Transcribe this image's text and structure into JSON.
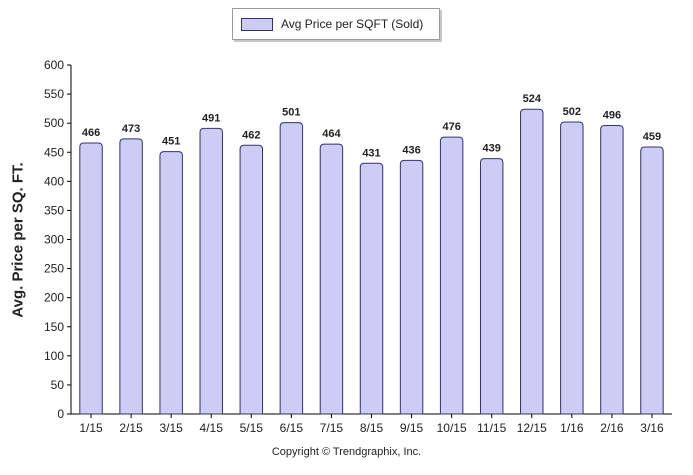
{
  "chart_data": {
    "type": "bar",
    "legend_label": "Avg Price per SQFT (Sold)",
    "legend_position": "top-center",
    "ylabel": "Avg. Price per SQ. FT.",
    "xlabel": "",
    "categories": [
      "1/15",
      "2/15",
      "3/15",
      "4/15",
      "5/15",
      "6/15",
      "7/15",
      "8/15",
      "9/15",
      "10/15",
      "11/15",
      "12/15",
      "1/16",
      "2/16",
      "3/16"
    ],
    "values": [
      466,
      473,
      451,
      491,
      462,
      501,
      464,
      431,
      436,
      476,
      439,
      524,
      502,
      496,
      459
    ],
    "value_labels": [
      "466",
      "473",
      "451",
      "491",
      "462",
      "501",
      "464",
      "431",
      "436",
      "476",
      "439",
      "524",
      "502",
      "496",
      "459"
    ],
    "ylim": [
      0,
      600
    ],
    "yticks": [
      "0",
      "50",
      "100",
      "150",
      "200",
      "250",
      "300",
      "350",
      "400",
      "450",
      "500",
      "550",
      "600"
    ],
    "grid": false,
    "bar_color": "#ccccf5",
    "bar_edge_color": "#333366",
    "footer": "Copyright © Trendgraphix, Inc."
  }
}
